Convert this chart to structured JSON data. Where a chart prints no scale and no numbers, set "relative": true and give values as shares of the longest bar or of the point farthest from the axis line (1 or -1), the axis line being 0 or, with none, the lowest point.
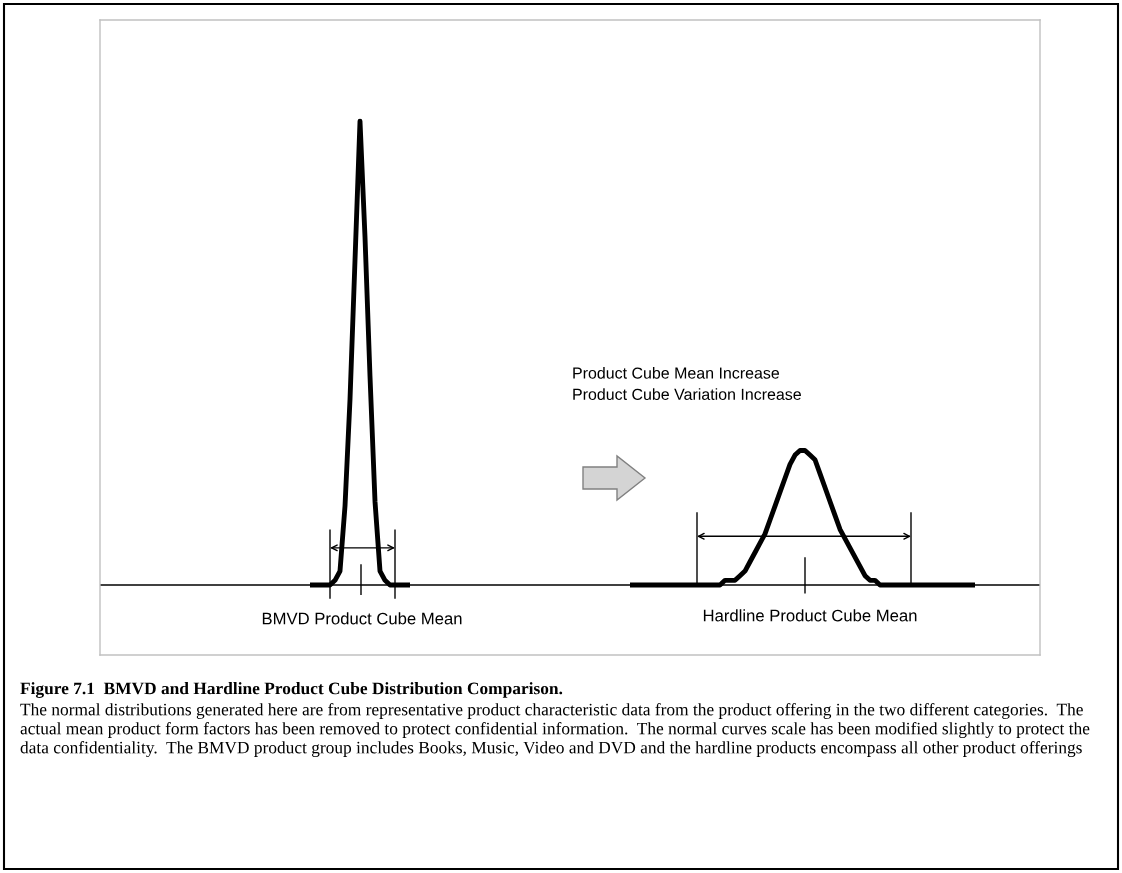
{
  "chart_data": {
    "type": "line",
    "relative": true,
    "title": "Figure 7.1  BMVD and Hardline Product Cube Distribution Comparison.",
    "annotations": [
      "Product Cube Mean Increase\nProduct Cube Variation Increase",
      "BMVD Product Cube Mean",
      "Hardline Product Cube Mean",
      "The normal distributions generated here are from representative product characteristic data from the product offering in the two different categories.  The actual mean product form factors has been removed to protect confidential information.  The normal curves scale has been modified slightly to protect the data confidentiality.  The BMVD product group includes Books, Music, Video and DVD and the hardline products encompass all other product offerings"
    ],
    "categories": [
      null,
      null,
      null,
      null,
      null,
      null,
      null,
      null,
      null,
      null,
      null,
      null,
      null,
      null,
      null,
      null,
      null,
      null,
      null,
      null,
      null,
      null,
      null,
      null,
      null,
      null,
      null,
      null,
      null,
      null,
      null,
      null,
      null,
      null,
      null,
      null,
      null,
      null,
      null,
      null,
      null,
      null,
      null,
      null,
      null,
      null,
      null,
      null,
      null,
      null,
      null,
      null,
      null,
      null,
      null,
      null,
      null,
      null,
      null,
      null,
      null,
      null,
      null,
      null,
      null,
      null,
      null,
      null,
      null,
      null,
      null,
      null,
      null,
      null,
      null,
      null,
      null,
      null,
      null,
      null,
      null,
      null,
      null,
      null,
      null,
      null,
      null,
      null,
      null,
      null,
      null,
      null,
      null,
      null,
      null,
      null,
      null,
      null,
      null,
      null,
      null,
      null,
      null,
      null,
      null,
      null,
      null,
      null,
      null,
      null,
      null,
      null,
      null,
      null,
      null,
      null,
      null,
      null,
      null,
      null,
      null,
      null,
      null,
      null,
      null,
      null,
      null,
      null,
      null,
      null,
      null,
      null,
      null,
      null,
      null,
      null,
      null,
      null,
      null,
      null,
      null,
      null,
      null,
      null,
      null,
      null,
      null,
      null,
      null,
      null,
      null,
      null,
      null,
      null,
      null,
      null,
      null,
      null,
      null,
      null,
      null,
      null,
      null,
      null,
      null,
      null,
      null,
      null,
      null,
      null,
      null,
      null,
      null,
      null,
      null,
      null,
      null,
      null,
      null
    ],
    "series": [
      {
        "color": "#000000",
        "values": [
          null,
          null,
          null,
          null,
          null,
          null,
          null,
          null,
          null,
          null,
          null,
          null,
          null,
          null,
          null,
          null,
          null,
          null,
          null,
          null,
          null,
          null,
          null,
          null,
          null,
          null,
          null,
          null,
          null,
          null,
          null,
          null,
          null,
          null,
          0,
          0,
          0,
          0,
          0,
          0.01,
          0.03,
          0.17,
          0.4,
          0.7,
          1,
          0.75,
          0.45,
          0.18,
          0.03,
          0.01,
          0,
          0,
          0,
          0,
          0,
          null,
          null,
          null,
          null,
          null,
          null,
          null,
          null,
          null,
          null,
          null,
          null,
          null,
          null,
          null,
          null,
          null,
          null,
          null,
          null,
          null,
          null,
          null,
          null,
          null,
          null,
          null,
          null,
          null,
          null,
          null,
          null,
          null,
          null,
          null,
          null,
          null,
          null,
          null,
          null,
          null,
          null,
          null,
          null,
          null,
          null,
          null,
          null,
          null,
          null,
          null,
          null,
          null,
          null,
          null,
          null,
          null,
          null,
          null,
          null,
          null,
          null,
          null,
          null,
          null,
          null,
          null,
          null,
          null,
          null,
          null,
          null,
          null,
          null,
          null,
          null,
          null,
          null,
          null,
          null,
          null,
          null,
          null,
          null,
          null,
          null,
          null,
          null,
          null,
          null,
          null,
          null,
          null,
          null,
          null,
          null,
          null,
          null,
          null,
          null,
          null,
          null,
          null,
          null,
          null,
          null,
          null,
          null,
          null,
          null,
          null,
          null,
          null,
          null,
          null,
          null,
          null,
          null,
          null,
          null,
          null,
          null,
          null,
          null
        ]
      },
      {
        "color": "#000000",
        "values": [
          null,
          null,
          null,
          null,
          null,
          null,
          null,
          null,
          null,
          null,
          null,
          null,
          null,
          null,
          null,
          null,
          null,
          null,
          null,
          null,
          null,
          null,
          null,
          null,
          null,
          null,
          null,
          null,
          null,
          null,
          null,
          null,
          null,
          null,
          null,
          null,
          null,
          null,
          null,
          null,
          null,
          null,
          null,
          null,
          null,
          null,
          null,
          null,
          null,
          null,
          null,
          null,
          null,
          null,
          null,
          null,
          null,
          null,
          null,
          null,
          null,
          null,
          null,
          null,
          null,
          null,
          null,
          null,
          null,
          null,
          null,
          null,
          null,
          null,
          null,
          null,
          null,
          null,
          null,
          null,
          null,
          null,
          null,
          null,
          null,
          null,
          null,
          null,
          null,
          null,
          null,
          null,
          null,
          null,
          null,
          null,
          null,
          null,
          0,
          0,
          0,
          0,
          0,
          0,
          0,
          0,
          0,
          0,
          0,
          0,
          0,
          0,
          0,
          0,
          0,
          0,
          0,
          0.01,
          0.01,
          0.01,
          0.02,
          0.03,
          0.05,
          0.07,
          0.09,
          0.11,
          0.14,
          0.17,
          0.2,
          0.23,
          0.26,
          0.28,
          0.29,
          0.29,
          0.28,
          0.27,
          0.24,
          0.21,
          0.18,
          0.15,
          0.12,
          0.1,
          0.08,
          0.06,
          0.04,
          0.02,
          0.01,
          0.01,
          0,
          0,
          0,
          0,
          0,
          0,
          0,
          0,
          0,
          0,
          0,
          0,
          0,
          0,
          0,
          0,
          0,
          0,
          0,
          0,
          null,
          null,
          null,
          null,
          null,
          null,
          null,
          null,
          null,
          null,
          null
        ]
      }
    ]
  }
}
